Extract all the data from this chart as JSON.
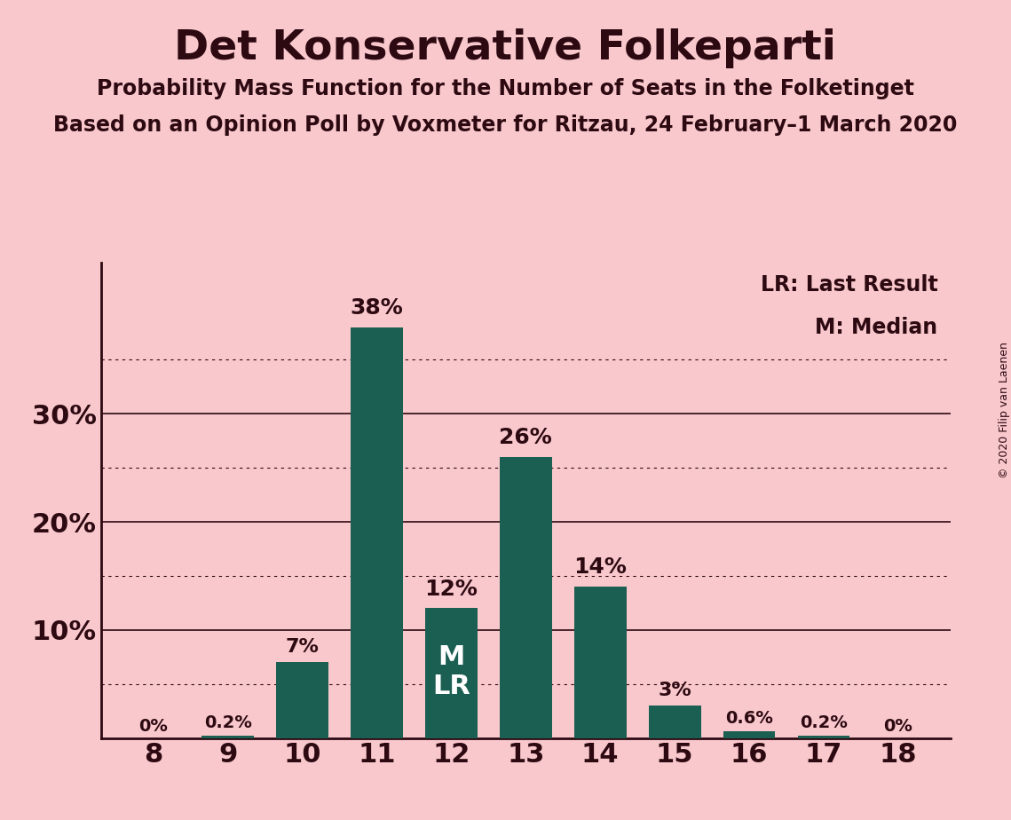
{
  "title": "Det Konservative Folkeparti",
  "subtitle1": "Probability Mass Function for the Number of Seats in the Folketinget",
  "subtitle2": "Based on an Opinion Poll by Voxmeter for Ritzau, 24 February–1 March 2020",
  "copyright": "© 2020 Filip van Laenen",
  "seats": [
    8,
    9,
    10,
    11,
    12,
    13,
    14,
    15,
    16,
    17,
    18
  ],
  "probabilities": [
    0.0,
    0.2,
    7.0,
    38.0,
    12.0,
    26.0,
    14.0,
    3.0,
    0.6,
    0.2,
    0.0
  ],
  "bar_color": "#1b5e52",
  "background_color": "#f9c8cc",
  "label_color": "#2d0a12",
  "bar_labels": [
    "0%",
    "0.2%",
    "7%",
    "38%",
    "12%",
    "26%",
    "14%",
    "3%",
    "0.6%",
    "0.2%",
    "0%"
  ],
  "median_seat": 12,
  "lr_seat": 12,
  "median_label": "M",
  "lr_label": "LR",
  "legend_lr": "LR: Last Result",
  "legend_m": "M: Median",
  "ylim_max": 44,
  "yticks": [
    0,
    5,
    10,
    15,
    20,
    25,
    30,
    35
  ],
  "solid_yticks": [
    10,
    20,
    30
  ],
  "dotted_yticks": [
    5,
    15,
    25,
    35
  ],
  "bar_width": 0.7
}
